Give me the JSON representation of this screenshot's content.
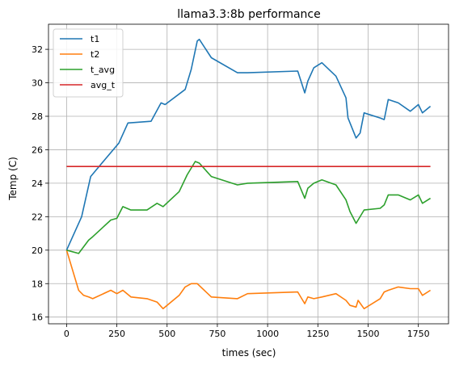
{
  "chart_data": {
    "type": "line",
    "title": "llama3.3:8b performance",
    "xlabel": "times (sec)",
    "ylabel": "Temp (C)",
    "xlim": [
      -90,
      1900
    ],
    "ylim": [
      15.6,
      33.5
    ],
    "xticks": [
      0,
      250,
      500,
      750,
      1000,
      1250,
      1500,
      1750
    ],
    "yticks": [
      16,
      18,
      20,
      22,
      24,
      26,
      28,
      30,
      32
    ],
    "grid": true,
    "legend_position": "top-left",
    "series": [
      {
        "name": "t1",
        "color": "#1f77b4",
        "x": [
          0,
          75,
          120,
          190,
          260,
          305,
          420,
          470,
          490,
          590,
          620,
          650,
          660,
          720,
          850,
          900,
          1150,
          1185,
          1200,
          1230,
          1270,
          1340,
          1390,
          1400,
          1440,
          1460,
          1480,
          1560,
          1580,
          1600,
          1650,
          1710,
          1750,
          1770,
          1810
        ],
        "y": [
          20.0,
          22.0,
          24.4,
          25.4,
          26.4,
          27.6,
          27.7,
          28.8,
          28.7,
          29.6,
          30.8,
          32.5,
          32.6,
          31.5,
          30.6,
          30.6,
          30.7,
          29.4,
          30.1,
          30.9,
          31.2,
          30.4,
          29.1,
          27.9,
          26.7,
          27.0,
          28.2,
          27.9,
          27.8,
          29.0,
          28.8,
          28.3,
          28.7,
          28.2,
          28.6
        ]
      },
      {
        "name": "t2",
        "color": "#ff7f0e",
        "x": [
          0,
          60,
          85,
          110,
          130,
          220,
          250,
          280,
          320,
          400,
          450,
          480,
          560,
          590,
          620,
          650,
          720,
          850,
          900,
          1150,
          1185,
          1200,
          1230,
          1270,
          1340,
          1390,
          1410,
          1440,
          1450,
          1480,
          1560,
          1580,
          1600,
          1650,
          1710,
          1750,
          1770,
          1810
        ],
        "y": [
          20.0,
          17.6,
          17.3,
          17.2,
          17.1,
          17.6,
          17.4,
          17.6,
          17.2,
          17.1,
          16.9,
          16.5,
          17.3,
          17.8,
          18.0,
          18.0,
          17.2,
          17.1,
          17.4,
          17.5,
          16.8,
          17.2,
          17.1,
          17.2,
          17.4,
          17.0,
          16.7,
          16.6,
          17.0,
          16.5,
          17.1,
          17.5,
          17.6,
          17.8,
          17.7,
          17.7,
          17.3,
          17.6
        ]
      },
      {
        "name": "t_avg",
        "color": "#2ca02c",
        "x": [
          0,
          60,
          110,
          130,
          220,
          250,
          280,
          320,
          400,
          450,
          480,
          560,
          600,
          640,
          660,
          720,
          850,
          900,
          1150,
          1185,
          1200,
          1230,
          1270,
          1340,
          1390,
          1410,
          1440,
          1480,
          1560,
          1580,
          1600,
          1650,
          1710,
          1750,
          1770,
          1810
        ],
        "y": [
          20.0,
          19.8,
          20.6,
          20.8,
          21.8,
          21.9,
          22.6,
          22.4,
          22.4,
          22.8,
          22.6,
          23.5,
          24.5,
          25.3,
          25.2,
          24.4,
          23.9,
          24.0,
          24.1,
          23.1,
          23.7,
          24.0,
          24.2,
          23.9,
          23.0,
          22.3,
          21.6,
          22.4,
          22.5,
          22.7,
          23.3,
          23.3,
          23.0,
          23.3,
          22.8,
          23.1
        ]
      },
      {
        "name": "avg_t",
        "color": "#d62728",
        "x": [
          0,
          1810
        ],
        "y": [
          25.0,
          25.0
        ]
      }
    ]
  }
}
